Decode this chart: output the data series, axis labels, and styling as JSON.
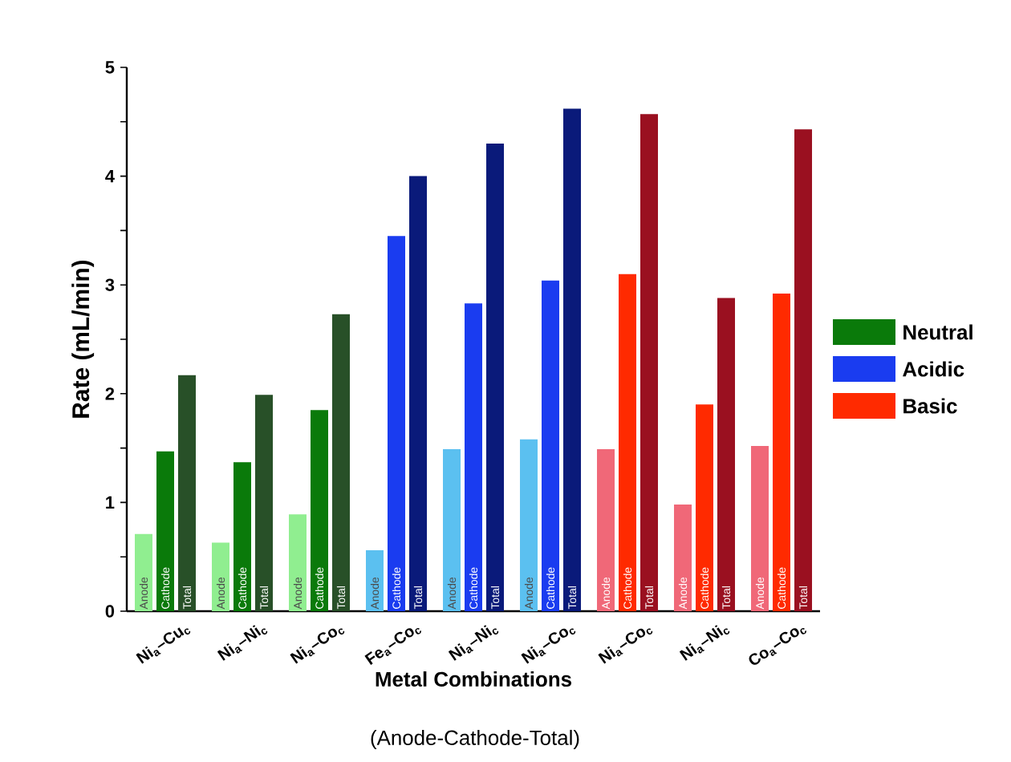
{
  "chart_data": {
    "type": "bar",
    "xlabel": "Metal Combinations",
    "ylabel": "Rate (mL/min)",
    "categories": [
      "Ni$_{a}$–Cu$_{c}$",
      "Ni$_{a}$–Ni$_{c}$",
      "Ni$_{a}$–Co$_{c}$",
      "Fe$_{a}$–Co$_{c}$",
      "Ni$_{a}$–Ni$_{c}$",
      "Ni$_{a}$–Co$_{c}$",
      "Ni$_{a}$–Co$_{c}$",
      "Ni$_{a}$–Ni$_{c}$",
      "Co$_{a}$–Co$_{c}$"
    ],
    "series": [
      {
        "name": "Anode",
        "values": [
          0.71,
          0.63,
          0.89,
          0.56,
          1.49,
          1.58,
          1.49,
          0.98,
          1.52
        ],
        "colors": [
          "#90ee90",
          "#90ee90",
          "#90ee90",
          "#5bc0f0",
          "#5bc0f0",
          "#5bc0f0",
          "#f06878",
          "#f06878",
          "#f06878"
        ]
      },
      {
        "name": "Cathode",
        "values": [
          1.47,
          1.37,
          1.85,
          3.45,
          2.83,
          3.04,
          3.1,
          1.9,
          2.92
        ],
        "colors": [
          "#0a7a0a",
          "#0a7a0a",
          "#0a7a0a",
          "#1a3cf0",
          "#1a3cf0",
          "#1a3cf0",
          "#ff2a00",
          "#ff2a00",
          "#ff2a00"
        ]
      },
      {
        "name": "Total",
        "values": [
          2.17,
          1.99,
          2.73,
          4.0,
          4.3,
          4.62,
          4.57,
          2.88,
          4.43
        ],
        "colors": [
          "#285028",
          "#285028",
          "#285028",
          "#0a1a7a",
          "#0a1a7a",
          "#0a1a7a",
          "#9a1020",
          "#9a1020",
          "#9a1020"
        ]
      }
    ],
    "ylim": [
      0,
      5
    ],
    "yticks": [
      0,
      {
        "value": 0.5,
        "label": null
      },
      1,
      {
        "value": 1.5,
        "label": null
      },
      2,
      {
        "value": 2.5,
        "label": null
      },
      3,
      {
        "value": 3.5,
        "label": null
      },
      4,
      {
        "value": 4.5,
        "label": null
      },
      5
    ],
    "annotations": [
      "(Anode-Cathode-Total)",
      "Neutral",
      "Acidic",
      "Basic"
    ]
  }
}
